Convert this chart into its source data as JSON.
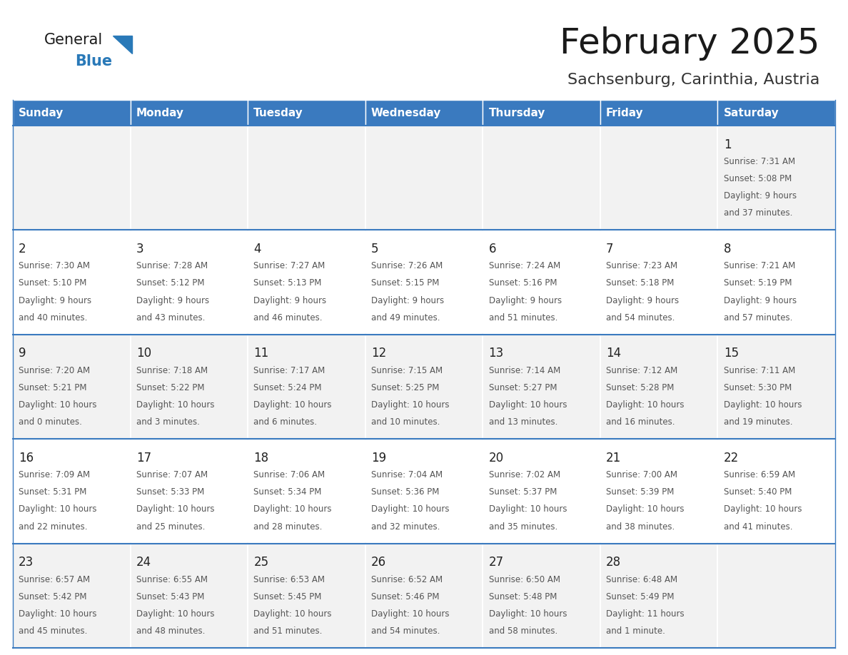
{
  "title": "February 2025",
  "subtitle": "Sachsenburg, Carinthia, Austria",
  "days_of_week": [
    "Sunday",
    "Monday",
    "Tuesday",
    "Wednesday",
    "Thursday",
    "Friday",
    "Saturday"
  ],
  "header_bg": "#3a7abf",
  "header_text": "#ffffff",
  "cell_bg_odd": "#f2f2f2",
  "cell_bg_even": "#ffffff",
  "border_color": "#3a7abf",
  "text_color": "#555555",
  "day_number_color": "#222222",
  "title_color": "#1a1a1a",
  "subtitle_color": "#333333",
  "logo_general_color": "#1a1a1a",
  "logo_blue_color": "#2979b8",
  "calendar_data": [
    [
      null,
      null,
      null,
      null,
      null,
      null,
      {
        "day": 1,
        "sunrise": "7:31 AM",
        "sunset": "5:08 PM",
        "daylight_line1": "9 hours",
        "daylight_line2": "and 37 minutes."
      }
    ],
    [
      {
        "day": 2,
        "sunrise": "7:30 AM",
        "sunset": "5:10 PM",
        "daylight_line1": "9 hours",
        "daylight_line2": "and 40 minutes."
      },
      {
        "day": 3,
        "sunrise": "7:28 AM",
        "sunset": "5:12 PM",
        "daylight_line1": "9 hours",
        "daylight_line2": "and 43 minutes."
      },
      {
        "day": 4,
        "sunrise": "7:27 AM",
        "sunset": "5:13 PM",
        "daylight_line1": "9 hours",
        "daylight_line2": "and 46 minutes."
      },
      {
        "day": 5,
        "sunrise": "7:26 AM",
        "sunset": "5:15 PM",
        "daylight_line1": "9 hours",
        "daylight_line2": "and 49 minutes."
      },
      {
        "day": 6,
        "sunrise": "7:24 AM",
        "sunset": "5:16 PM",
        "daylight_line1": "9 hours",
        "daylight_line2": "and 51 minutes."
      },
      {
        "day": 7,
        "sunrise": "7:23 AM",
        "sunset": "5:18 PM",
        "daylight_line1": "9 hours",
        "daylight_line2": "and 54 minutes."
      },
      {
        "day": 8,
        "sunrise": "7:21 AM",
        "sunset": "5:19 PM",
        "daylight_line1": "9 hours",
        "daylight_line2": "and 57 minutes."
      }
    ],
    [
      {
        "day": 9,
        "sunrise": "7:20 AM",
        "sunset": "5:21 PM",
        "daylight_line1": "10 hours",
        "daylight_line2": "and 0 minutes."
      },
      {
        "day": 10,
        "sunrise": "7:18 AM",
        "sunset": "5:22 PM",
        "daylight_line1": "10 hours",
        "daylight_line2": "and 3 minutes."
      },
      {
        "day": 11,
        "sunrise": "7:17 AM",
        "sunset": "5:24 PM",
        "daylight_line1": "10 hours",
        "daylight_line2": "and 6 minutes."
      },
      {
        "day": 12,
        "sunrise": "7:15 AM",
        "sunset": "5:25 PM",
        "daylight_line1": "10 hours",
        "daylight_line2": "and 10 minutes."
      },
      {
        "day": 13,
        "sunrise": "7:14 AM",
        "sunset": "5:27 PM",
        "daylight_line1": "10 hours",
        "daylight_line2": "and 13 minutes."
      },
      {
        "day": 14,
        "sunrise": "7:12 AM",
        "sunset": "5:28 PM",
        "daylight_line1": "10 hours",
        "daylight_line2": "and 16 minutes."
      },
      {
        "day": 15,
        "sunrise": "7:11 AM",
        "sunset": "5:30 PM",
        "daylight_line1": "10 hours",
        "daylight_line2": "and 19 minutes."
      }
    ],
    [
      {
        "day": 16,
        "sunrise": "7:09 AM",
        "sunset": "5:31 PM",
        "daylight_line1": "10 hours",
        "daylight_line2": "and 22 minutes."
      },
      {
        "day": 17,
        "sunrise": "7:07 AM",
        "sunset": "5:33 PM",
        "daylight_line1": "10 hours",
        "daylight_line2": "and 25 minutes."
      },
      {
        "day": 18,
        "sunrise": "7:06 AM",
        "sunset": "5:34 PM",
        "daylight_line1": "10 hours",
        "daylight_line2": "and 28 minutes."
      },
      {
        "day": 19,
        "sunrise": "7:04 AM",
        "sunset": "5:36 PM",
        "daylight_line1": "10 hours",
        "daylight_line2": "and 32 minutes."
      },
      {
        "day": 20,
        "sunrise": "7:02 AM",
        "sunset": "5:37 PM",
        "daylight_line1": "10 hours",
        "daylight_line2": "and 35 minutes."
      },
      {
        "day": 21,
        "sunrise": "7:00 AM",
        "sunset": "5:39 PM",
        "daylight_line1": "10 hours",
        "daylight_line2": "and 38 minutes."
      },
      {
        "day": 22,
        "sunrise": "6:59 AM",
        "sunset": "5:40 PM",
        "daylight_line1": "10 hours",
        "daylight_line2": "and 41 minutes."
      }
    ],
    [
      {
        "day": 23,
        "sunrise": "6:57 AM",
        "sunset": "5:42 PM",
        "daylight_line1": "10 hours",
        "daylight_line2": "and 45 minutes."
      },
      {
        "day": 24,
        "sunrise": "6:55 AM",
        "sunset": "5:43 PM",
        "daylight_line1": "10 hours",
        "daylight_line2": "and 48 minutes."
      },
      {
        "day": 25,
        "sunrise": "6:53 AM",
        "sunset": "5:45 PM",
        "daylight_line1": "10 hours",
        "daylight_line2": "and 51 minutes."
      },
      {
        "day": 26,
        "sunrise": "6:52 AM",
        "sunset": "5:46 PM",
        "daylight_line1": "10 hours",
        "daylight_line2": "and 54 minutes."
      },
      {
        "day": 27,
        "sunrise": "6:50 AM",
        "sunset": "5:48 PM",
        "daylight_line1": "10 hours",
        "daylight_line2": "and 58 minutes."
      },
      {
        "day": 28,
        "sunrise": "6:48 AM",
        "sunset": "5:49 PM",
        "daylight_line1": "11 hours",
        "daylight_line2": "and 1 minute."
      },
      null
    ]
  ],
  "num_rows": 5,
  "num_cols": 7,
  "fig_width": 11.88,
  "fig_height": 9.18
}
